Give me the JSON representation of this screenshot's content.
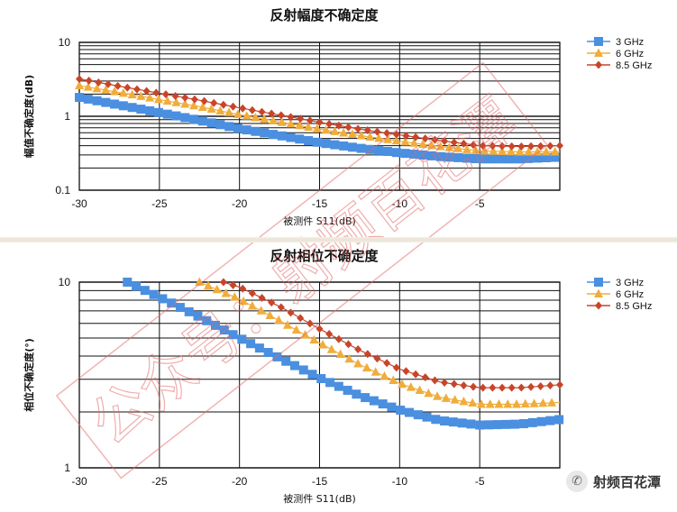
{
  "colors": {
    "3 GHz": "#4a8fe0",
    "6 GHz": "#f0ad3c",
    "8.5 GHz": "#c8452a",
    "grid": "#111111",
    "watermark": "#e36a6a"
  },
  "watermark": {
    "text": "公众号：射频百花潭"
  },
  "brand": {
    "icon": "wechat-icon",
    "text": "射频百花潭"
  },
  "chart_data": [
    {
      "type": "scatter",
      "title": "反射幅度不确定度",
      "xlabel": "被测件 S11(dB)",
      "ylabel": "幅值不确定度(dB)",
      "yscale": "log",
      "xlim": [
        -30,
        0
      ],
      "ylim": [
        0.1,
        10
      ],
      "xticks": [
        "-30",
        "-25",
        "-20",
        "-15",
        "-10",
        "-5"
      ],
      "yticks": [
        "10",
        "1",
        "0.1"
      ],
      "grid": true,
      "legend": "top-right",
      "series": [
        {
          "name": "3 GHz",
          "marker": "square",
          "x": [
            -30,
            -27.5,
            -25,
            -22.5,
            -20,
            -17.5,
            -15,
            -12.5,
            -10,
            -7.5,
            -5,
            -2.5,
            0
          ],
          "y": [
            1.8,
            1.42,
            1.12,
            0.88,
            0.68,
            0.55,
            0.44,
            0.37,
            0.32,
            0.285,
            0.265,
            0.265,
            0.28
          ]
        },
        {
          "name": "6 GHz",
          "marker": "triangle",
          "x": [
            -30,
            -27.5,
            -25,
            -22.5,
            -20,
            -17.5,
            -15,
            -12.5,
            -10,
            -7.5,
            -5,
            -2.5,
            0
          ],
          "y": [
            2.6,
            2.1,
            1.68,
            1.35,
            1.05,
            0.84,
            0.67,
            0.55,
            0.46,
            0.39,
            0.34,
            0.33,
            0.33
          ]
        },
        {
          "name": "8.5 GHz",
          "marker": "diamond",
          "x": [
            -30,
            -27.5,
            -25,
            -22.5,
            -20,
            -17.5,
            -15,
            -12.5,
            -10,
            -7.5,
            -5,
            -2.5,
            0
          ],
          "y": [
            3.2,
            2.55,
            2.05,
            1.65,
            1.3,
            1.04,
            0.83,
            0.67,
            0.56,
            0.47,
            0.4,
            0.39,
            0.4
          ]
        }
      ]
    },
    {
      "type": "scatter",
      "title": "反射相位不确定度",
      "xlabel": "被测件 S11(dB)",
      "ylabel": "相位不确定度(°)",
      "yscale": "log",
      "xlim": [
        -30,
        0
      ],
      "ylim": [
        1,
        10
      ],
      "xticks": [
        "-30",
        "-25",
        "-20",
        "-15",
        "-10",
        "-5"
      ],
      "yticks": [
        "10",
        "1"
      ],
      "grid": true,
      "legend": "top-right",
      "series": [
        {
          "name": "3 GHz",
          "marker": "square",
          "x": [
            -27,
            -25,
            -22.5,
            -20,
            -17.5,
            -15,
            -12.5,
            -10,
            -7.5,
            -5,
            -2.5,
            0
          ],
          "y": [
            10,
            8.3,
            6.5,
            5.0,
            3.9,
            3.05,
            2.45,
            2.05,
            1.8,
            1.7,
            1.72,
            1.82
          ]
        },
        {
          "name": "6 GHz",
          "marker": "triangle",
          "x": [
            -22.5,
            -20,
            -17.5,
            -15,
            -12.5,
            -10,
            -7.5,
            -5,
            -2.5,
            0
          ],
          "y": [
            10,
            8.1,
            6.2,
            4.7,
            3.6,
            2.85,
            2.4,
            2.2,
            2.2,
            2.25
          ]
        },
        {
          "name": "8.5 GHz",
          "marker": "diamond",
          "x": [
            -21,
            -20,
            -17.5,
            -15,
            -12.5,
            -10,
            -7.5,
            -5,
            -2.5,
            0
          ],
          "y": [
            10,
            9.4,
            7.4,
            5.6,
            4.3,
            3.4,
            2.9,
            2.7,
            2.7,
            2.8
          ]
        }
      ]
    }
  ]
}
